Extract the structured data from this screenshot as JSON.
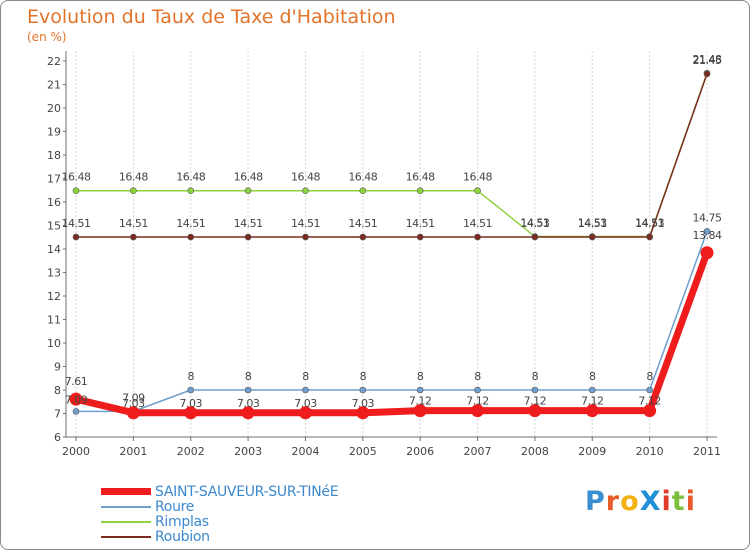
{
  "chart_data": {
    "type": "line",
    "title": "Evolution du Taux de Taxe d'Habitation",
    "subtitle": "(en %)",
    "xlabel": "",
    "ylabel": "",
    "x": [
      "2000",
      "2001",
      "2002",
      "2003",
      "2004",
      "2005",
      "2006",
      "2007",
      "2008",
      "2009",
      "2010",
      "2011"
    ],
    "ylim": [
      6,
      22
    ],
    "yticks": [
      6,
      7,
      8,
      9,
      10,
      11,
      12,
      13,
      14,
      15,
      16,
      17,
      18,
      19,
      20,
      21,
      22
    ],
    "grid": "vertical",
    "series": [
      {
        "name": "SAINT-SAUVEUR-SUR-TINéE",
        "color": "#ee1c1c",
        "values": [
          7.61,
          7.03,
          7.03,
          7.03,
          7.03,
          7.03,
          7.12,
          7.12,
          7.12,
          7.12,
          7.12,
          13.84
        ],
        "labels": [
          "7.61",
          "7.03",
          "7.03",
          "7.03",
          "7.03",
          "7.03",
          "7.12",
          "7.12",
          "7.12",
          "7.12",
          "7.12",
          "13.84"
        ]
      },
      {
        "name": "Roure",
        "color": "#6f9fcf",
        "values": [
          7.09,
          7.09,
          8,
          8,
          8,
          8,
          8,
          8,
          8,
          8,
          8,
          14.75
        ],
        "labels": [
          "7.09",
          "7.09",
          "8",
          "8",
          "8",
          "8",
          "8",
          "8",
          "8",
          "8",
          "8",
          "14.75"
        ]
      },
      {
        "name": "Rimplas",
        "color": "#8dd33d",
        "values": [
          16.48,
          16.48,
          16.48,
          16.48,
          16.48,
          16.48,
          16.48,
          16.48,
          14.53,
          14.53,
          14.53,
          21.48
        ],
        "labels": [
          "16.48",
          "16.48",
          "16.48",
          "16.48",
          "16.48",
          "16.48",
          "16.48",
          "16.48",
          "14.53",
          "14.53",
          "14.53",
          "21.48"
        ]
      },
      {
        "name": "Roubion",
        "color": "#7b2a1e",
        "values": [
          14.51,
          14.51,
          14.51,
          14.51,
          14.51,
          14.51,
          14.51,
          14.51,
          14.51,
          14.51,
          14.51,
          21.45
        ],
        "labels": [
          "14.51",
          "14.51",
          "14.51",
          "14.51",
          "14.51",
          "14.51",
          "14.51",
          "14.51",
          "14.51",
          "14.51",
          "14.51",
          "21.45"
        ]
      }
    ]
  },
  "logo": {
    "text": "ProXiti",
    "colors": [
      "#3a8fd0",
      "#e85a2a",
      "#f2b10e",
      "#1f8fd6",
      "#e03a2a",
      "#7cc03e",
      "#e85a2a"
    ]
  }
}
